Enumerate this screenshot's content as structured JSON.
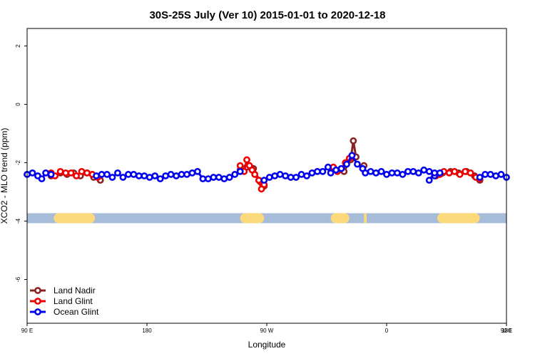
{
  "chart_data": {
    "type": "line",
    "title": "30S-25S July (Ver 10)   2015-01-01 to 2020-12-18",
    "xlabel": "Longitude",
    "ylabel": "XCO2 - MLO trend (ppm)",
    "x_domain_start_label": "90 E",
    "xlim": [
      0,
      360
    ],
    "ylim": [
      -7.5,
      2.6
    ],
    "x_ticks": [
      {
        "value": 0,
        "label": "90 E"
      },
      {
        "value": 90,
        "label": "180"
      },
      {
        "value": 180,
        "label": "90 W"
      },
      {
        "value": 270,
        "label": "0"
      },
      {
        "value": 360,
        "label": "90 E"
      }
    ],
    "x_ticks_extra": [
      {
        "value": 360,
        "label": "180"
      }
    ],
    "y_ticks": [
      2,
      0,
      -2,
      -4,
      -6
    ],
    "grid": false,
    "legend_position": "bottom-left",
    "land_band": {
      "y": -3.9,
      "ocean_color": "#a7bcd8",
      "land_color": "#fcd97a",
      "land_segments": [
        [
          20,
          51
        ],
        [
          160,
          178
        ],
        [
          228,
          242
        ],
        [
          253,
          255
        ],
        [
          308,
          340
        ]
      ]
    },
    "series": [
      {
        "name": "Land Nadir",
        "color": "#8b2323",
        "segments": [
          [
            [
              18,
              -2.45
            ],
            [
              25,
              -2.35
            ],
            [
              30,
              -2.4
            ],
            [
              35,
              -2.35
            ],
            [
              40,
              -2.45
            ],
            [
              45,
              -2.35
            ],
            [
              50,
              -2.5
            ],
            [
              55,
              -2.6
            ]
          ],
          [
            [
              160,
              -2.25
            ],
            [
              165,
              -2.15
            ],
            [
              170,
              -2.2
            ],
            [
              175,
              -2.65
            ],
            [
              178,
              -2.8
            ]
          ],
          [
            [
              238,
              -2.3
            ],
            [
              243,
              -1.9
            ],
            [
              245,
              -1.25
            ],
            [
              247,
              -1.8
            ]
          ],
          [
            [
              253,
              -2.1
            ]
          ],
          [
            [
              306,
              -2.4
            ],
            [
              312,
              -2.35
            ],
            [
              318,
              -2.3
            ],
            [
              324,
              -2.35
            ],
            [
              330,
              -2.3
            ],
            [
              336,
              -2.45
            ],
            [
              340,
              -2.6
            ]
          ]
        ]
      },
      {
        "name": "Land Glint",
        "color": "#ee0000",
        "segments": [
          [
            [
              18,
              -2.35
            ],
            [
              21,
              -2.45
            ],
            [
              25,
              -2.3
            ],
            [
              29,
              -2.35
            ],
            [
              33,
              -2.35
            ],
            [
              37,
              -2.45
            ],
            [
              41,
              -2.3
            ],
            [
              45,
              -2.35
            ],
            [
              49,
              -2.4
            ],
            [
              53,
              -2.5
            ]
          ],
          [
            [
              160,
              -2.1
            ],
            [
              163,
              -2.3
            ],
            [
              165,
              -1.9
            ],
            [
              167,
              -2.1
            ],
            [
              169,
              -2.25
            ],
            [
              171,
              -2.4
            ],
            [
              174,
              -2.6
            ],
            [
              176,
              -2.9
            ],
            [
              178,
              -2.75
            ]
          ],
          [
            [
              230,
              -2.15
            ],
            [
              233,
              -2.3
            ],
            [
              236,
              -2.2
            ],
            [
              239,
              -2.0
            ],
            [
              242,
              -1.85
            ],
            [
              244,
              -1.75
            ]
          ],
          [
            [
              307,
              -2.45
            ],
            [
              310,
              -2.4
            ],
            [
              313,
              -2.3
            ],
            [
              317,
              -2.35
            ],
            [
              321,
              -2.3
            ],
            [
              325,
              -2.4
            ],
            [
              329,
              -2.3
            ],
            [
              333,
              -2.35
            ],
            [
              337,
              -2.5
            ],
            [
              340,
              -2.55
            ]
          ]
        ]
      },
      {
        "name": "Ocean Glint",
        "color": "#0000ee",
        "segments": [
          [
            [
              0,
              -2.4
            ],
            [
              4,
              -2.35
            ],
            [
              8,
              -2.45
            ],
            [
              11,
              -2.55
            ],
            [
              14,
              -2.35
            ],
            [
              18,
              -2.4
            ]
          ],
          [
            [
              52,
              -2.45
            ],
            [
              56,
              -2.4
            ],
            [
              60,
              -2.4
            ],
            [
              64,
              -2.5
            ],
            [
              68,
              -2.35
            ],
            [
              72,
              -2.5
            ],
            [
              76,
              -2.4
            ],
            [
              80,
              -2.4
            ],
            [
              84,
              -2.45
            ],
            [
              88,
              -2.45
            ],
            [
              92,
              -2.5
            ],
            [
              96,
              -2.45
            ],
            [
              100,
              -2.55
            ],
            [
              104,
              -2.45
            ],
            [
              108,
              -2.4
            ],
            [
              112,
              -2.45
            ],
            [
              116,
              -2.4
            ],
            [
              120,
              -2.4
            ],
            [
              124,
              -2.35
            ],
            [
              128,
              -2.3
            ],
            [
              132,
              -2.55
            ],
            [
              136,
              -2.55
            ],
            [
              140,
              -2.5
            ],
            [
              144,
              -2.5
            ],
            [
              148,
              -2.55
            ],
            [
              152,
              -2.5
            ],
            [
              156,
              -2.4
            ],
            [
              160,
              -2.3
            ]
          ],
          [
            [
              178,
              -2.6
            ],
            [
              182,
              -2.5
            ],
            [
              186,
              -2.45
            ],
            [
              190,
              -2.4
            ],
            [
              194,
              -2.45
            ],
            [
              198,
              -2.5
            ],
            [
              202,
              -2.5
            ],
            [
              206,
              -2.4
            ],
            [
              210,
              -2.45
            ],
            [
              214,
              -2.35
            ],
            [
              218,
              -2.3
            ],
            [
              222,
              -2.3
            ],
            [
              226,
              -2.15
            ],
            [
              228,
              -2.35
            ],
            [
              232,
              -2.25
            ],
            [
              236,
              -2.2
            ],
            [
              240,
              -2.05
            ],
            [
              244,
              -1.75
            ],
            [
              248,
              -2.05
            ],
            [
              252,
              -2.2
            ],
            [
              254,
              -2.35
            ],
            [
              258,
              -2.3
            ],
            [
              262,
              -2.35
            ],
            [
              266,
              -2.3
            ],
            [
              270,
              -2.4
            ],
            [
              274,
              -2.35
            ],
            [
              278,
              -2.35
            ],
            [
              282,
              -2.4
            ],
            [
              286,
              -2.3
            ],
            [
              290,
              -2.3
            ],
            [
              294,
              -2.35
            ],
            [
              298,
              -2.25
            ],
            [
              302,
              -2.3
            ],
            [
              306,
              -2.45
            ],
            [
              310,
              -2.35
            ]
          ],
          [
            [
              302,
              -2.6
            ],
            [
              306,
              -2.35
            ]
          ],
          [
            [
              340,
              -2.5
            ],
            [
              344,
              -2.4
            ],
            [
              348,
              -2.4
            ],
            [
              352,
              -2.45
            ],
            [
              356,
              -2.4
            ],
            [
              360,
              -2.5
            ]
          ]
        ]
      }
    ]
  }
}
